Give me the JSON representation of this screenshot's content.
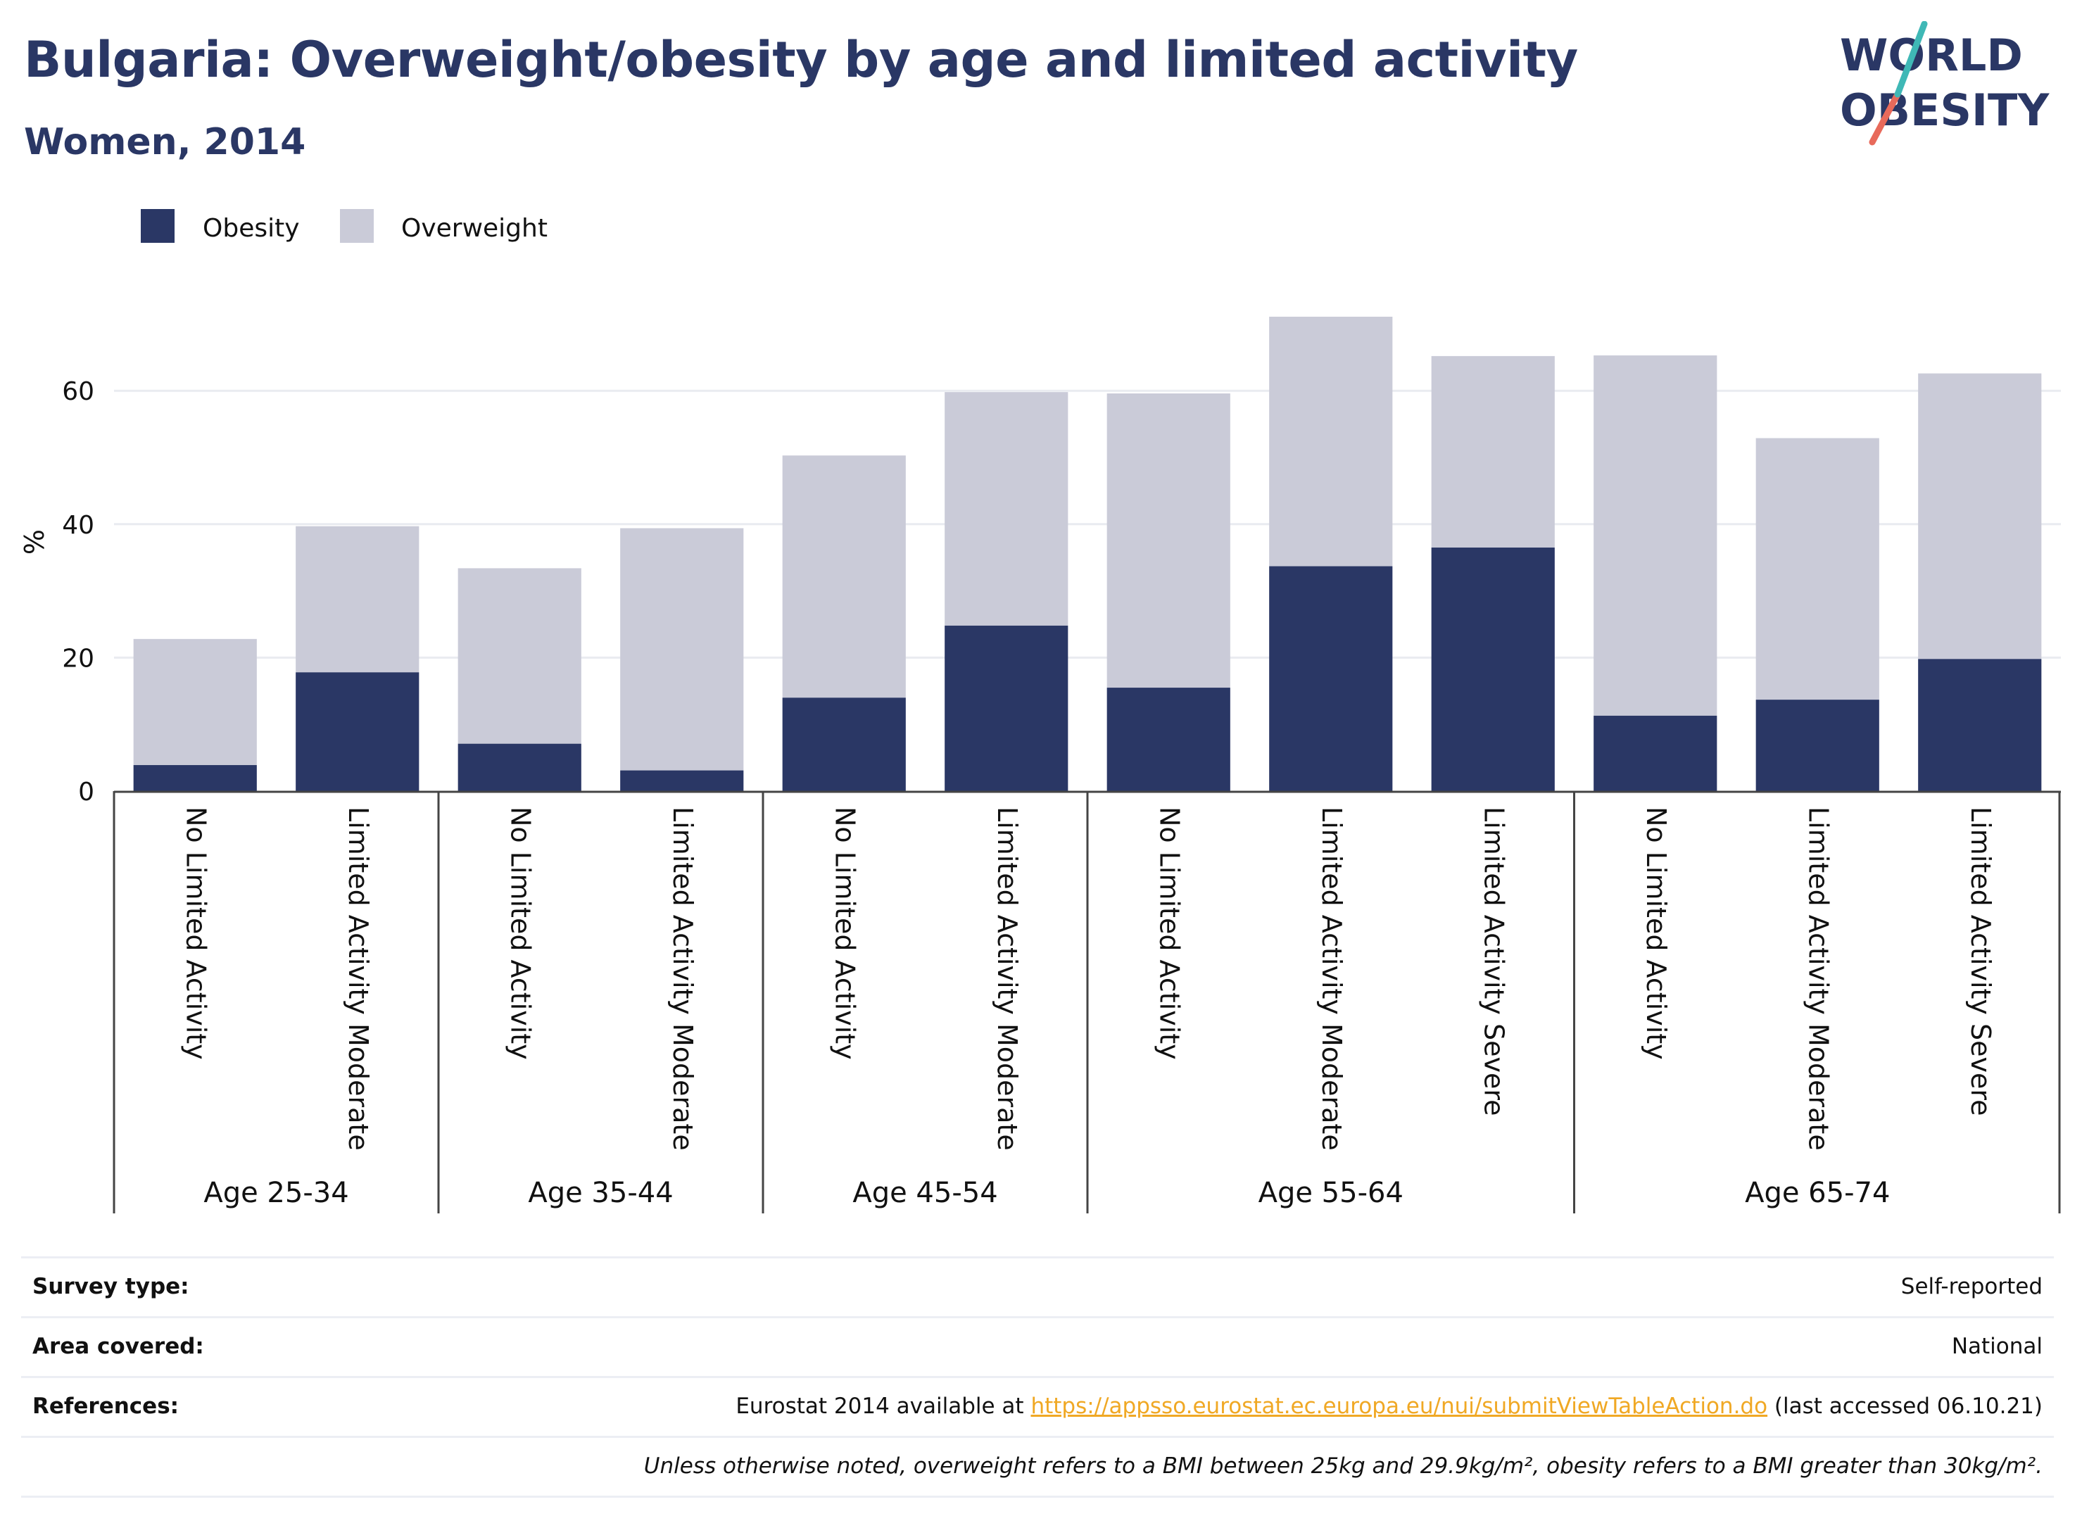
{
  "title": "Bulgaria: Overweight/obesity by age and limited activity",
  "subtitle": "Women, 2014",
  "logo": {
    "line1": "WORLD",
    "line2": "OBESITY"
  },
  "colors": {
    "obesity": "#2a3765",
    "overweight": "#cacbd8",
    "text": "#2a3765",
    "link": "#f0a824",
    "grid": "#e9ebf0"
  },
  "chart_data": {
    "type": "bar",
    "stacked": true,
    "ylabel": "%",
    "ylim": [
      0,
      75
    ],
    "yticks": [
      0,
      20,
      40,
      60
    ],
    "grid": true,
    "legend_position": "top-left",
    "categories": [
      "No Limited Activity",
      "Limited Activity Moderate",
      "No Limited Activity",
      "Limited Activity Moderate",
      "No Limited Activity",
      "Limited Activity Moderate",
      "No Limited Activity",
      "Limited Activity Moderate",
      "Limited Activity Severe",
      "No Limited Activity",
      "Limited Activity Moderate",
      "Limited Activity Severe"
    ],
    "groups": [
      {
        "label": "Age 25-34",
        "count": 2
      },
      {
        "label": "Age 35-44",
        "count": 2
      },
      {
        "label": "Age 45-54",
        "count": 2
      },
      {
        "label": "Age 55-64",
        "count": 3
      },
      {
        "label": "Age 65-74",
        "count": 3
      }
    ],
    "series": [
      {
        "name": "Obesity",
        "values": [
          3.9,
          17.8,
          7.1,
          3.1,
          14.0,
          24.8,
          15.5,
          33.7,
          36.5,
          11.3,
          13.7,
          19.8
        ]
      },
      {
        "name": "Overweight",
        "values": [
          18.9,
          21.9,
          26.3,
          36.3,
          36.3,
          35.0,
          44.1,
          37.4,
          28.7,
          54.0,
          39.2,
          42.8
        ]
      }
    ]
  },
  "info": {
    "survey_label": "Survey type:",
    "survey_value": "Self-reported",
    "area_label": "Area covered:",
    "area_value": "National",
    "ref_label": "References:",
    "ref_prefix": "Eurostat 2014 available at ",
    "ref_link": "https://appsso.eurostat.ec.europa.eu/nui/submitViewTableAction.do",
    "ref_suffix": " (last accessed 06.10.21)",
    "note": "Unless otherwise noted, overweight refers to a BMI between 25kg and 29.9kg/m², obesity refers to a BMI greater than 30kg/m²."
  }
}
